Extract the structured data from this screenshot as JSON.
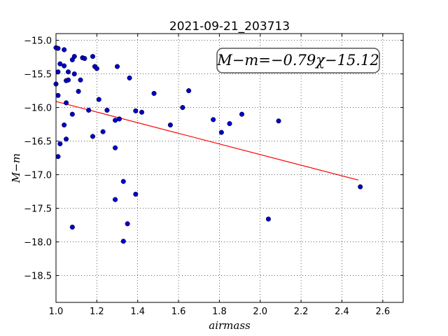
{
  "chart_data": {
    "type": "scatter",
    "title": "2021-09-21_203713",
    "xlabel": "airmass",
    "ylabel": "M−m",
    "annotation": "M−m=−0.79χ−15.12",
    "xlim": [
      1.0,
      2.7
    ],
    "ylim": [
      -18.9,
      -14.9
    ],
    "x_ticks": [
      1.0,
      1.2,
      1.4,
      1.6,
      1.8,
      2.0,
      2.2,
      2.4,
      2.6
    ],
    "x_tick_labels": [
      "1.0",
      "1.2",
      "1.4",
      "1.6",
      "1.8",
      "2.0",
      "2.2",
      "2.4",
      "2.6"
    ],
    "y_ticks": [
      -15.0,
      -15.5,
      -16.0,
      -16.5,
      -17.0,
      -17.5,
      -18.0,
      -18.5
    ],
    "y_tick_labels": [
      "−15.0",
      "−15.5",
      "−16.0",
      "−16.5",
      "−17.0",
      "−17.5",
      "−18.0",
      "−18.5"
    ],
    "grid": true,
    "fit_line": {
      "slope": -0.79,
      "intercept": -15.12,
      "x_range": [
        1.0,
        2.48
      ],
      "color": "#ff0000"
    },
    "point_color": "#0000cc",
    "x": [
      1.0,
      1.01,
      1.04,
      1.02,
      1.04,
      1.01,
      1.08,
      1.09,
      1.13,
      1.14,
      1.18,
      1.06,
      1.09,
      1.19,
      1.2,
      1.3,
      1.0,
      1.05,
      1.06,
      1.12,
      1.36,
      1.11,
      1.01,
      1.05,
      1.21,
      1.08,
      1.16,
      1.25,
      1.31,
      1.29,
      1.04,
      1.23,
      1.18,
      1.05,
      1.02,
      1.29,
      1.01,
      1.48,
      1.65,
      1.62,
      1.39,
      1.42,
      1.56,
      1.77,
      1.81,
      1.85,
      1.91,
      2.09,
      1.33,
      1.39,
      1.29,
      1.35,
      1.08,
      1.33,
      2.04,
      2.49
    ],
    "y": [
      -15.11,
      -15.12,
      -15.14,
      -15.35,
      -15.38,
      -15.47,
      -15.29,
      -15.24,
      -15.26,
      -15.27,
      -15.24,
      -15.47,
      -15.5,
      -15.39,
      -15.42,
      -15.39,
      -15.65,
      -15.6,
      -15.59,
      -15.59,
      -15.56,
      -15.76,
      -15.82,
      -15.93,
      -15.88,
      -16.1,
      -16.04,
      -16.04,
      -16.17,
      -16.19,
      -16.26,
      -16.36,
      -16.43,
      -16.47,
      -16.54,
      -16.6,
      -16.73,
      -15.79,
      -15.75,
      -16.0,
      -16.05,
      -16.07,
      -16.26,
      -16.18,
      -16.37,
      -16.24,
      -16.1,
      -16.2,
      -17.1,
      -17.29,
      -17.37,
      -17.73,
      -17.78,
      -17.99,
      -17.66,
      -17.18
    ]
  }
}
